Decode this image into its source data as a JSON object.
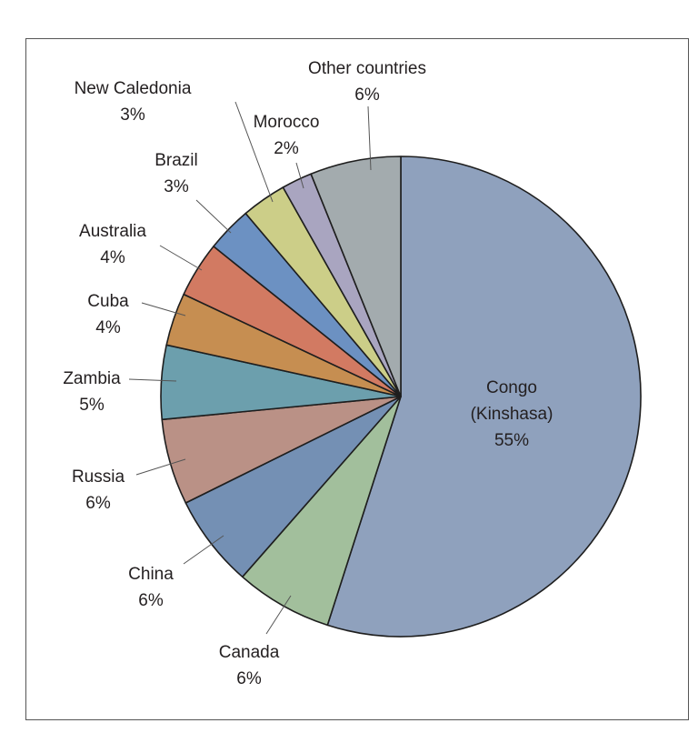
{
  "chart_data": {
    "type": "pie",
    "title": "",
    "center": [
      441,
      436
    ],
    "radius": 264,
    "slices": [
      {
        "label": "Congo (Kinshasa)",
        "line1": "Congo",
        "line2": "(Kinshasa)",
        "pct_label": "55%",
        "value": 55,
        "start": 0,
        "end": 197.8,
        "color": "#8fa1bd"
      },
      {
        "label": "Canada",
        "pct_label": "6%",
        "value": 6,
        "start": 197.8,
        "end": 221.3,
        "color": "#a2bf9c"
      },
      {
        "label": "China",
        "pct_label": "6%",
        "value": 6,
        "start": 221.3,
        "end": 243.7,
        "color": "#7490b4"
      },
      {
        "label": "Russia",
        "pct_label": "6%",
        "value": 6,
        "start": 243.7,
        "end": 264.5,
        "color": "#ba9186"
      },
      {
        "label": "Zambia",
        "pct_label": "5%",
        "value": 5,
        "start": 264.5,
        "end": 282.4,
        "color": "#6c9fad"
      },
      {
        "label": "Cuba",
        "pct_label": "4%",
        "value": 4,
        "start": 282.4,
        "end": 295.2,
        "color": "#c68e51"
      },
      {
        "label": "Australia",
        "pct_label": "4%",
        "value": 4,
        "start": 295.2,
        "end": 308.7,
        "color": "#d27a62"
      },
      {
        "label": "Brazil",
        "pct_label": "3%",
        "value": 3,
        "start": 308.7,
        "end": 319.7,
        "color": "#6c91c2"
      },
      {
        "label": "New Caledonia",
        "pct_label": "3%",
        "value": 3,
        "start": 319.7,
        "end": 330.6,
        "color": "#ccce88"
      },
      {
        "label": "Morocco",
        "pct_label": "2%",
        "value": 2,
        "start": 330.6,
        "end": 338.0,
        "color": "#a9a5c0"
      },
      {
        "label": "Other countries",
        "pct_label": "6%",
        "value": 6,
        "start": 338.0,
        "end": 360,
        "color": "#a3abae"
      }
    ]
  },
  "labels": {
    "congo_1": "Congo",
    "congo_2": "(Kinshasa)",
    "congo_pct": "55%",
    "canada": "Canada",
    "canada_pct": "6%",
    "china": "China",
    "china_pct": "6%",
    "russia": "Russia",
    "russia_pct": "6%",
    "zambia": "Zambia",
    "zambia_pct": "5%",
    "cuba": "Cuba",
    "cuba_pct": "4%",
    "australia": "Australia",
    "australia_pct": "4%",
    "brazil": "Brazil",
    "brazil_pct": "3%",
    "newcal": "New Caledonia",
    "newcal_pct": "3%",
    "morocco": "Morocco",
    "morocco_pct": "2%",
    "other": "Other countries",
    "other_pct": "6%"
  }
}
